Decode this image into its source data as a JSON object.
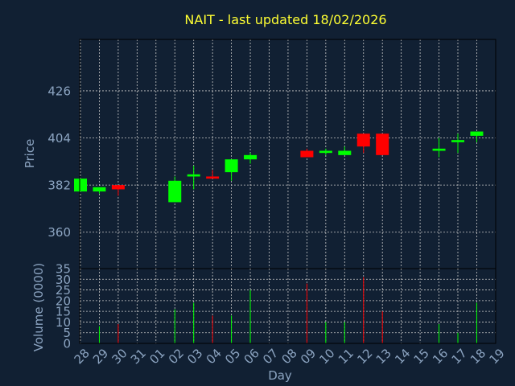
{
  "chart_data": [
    {
      "type": "candlestick",
      "title": "NAIT - last updated 18/02/2026",
      "ylabel": "Price",
      "ylim": [
        343,
        450
      ],
      "yticks": [
        360,
        382,
        404,
        426
      ],
      "grid": true,
      "up_color": "#00ff00",
      "down_color": "#ff0000",
      "candles": [
        {
          "day": "28",
          "open": 379,
          "high": 385,
          "low": 379,
          "close": 385
        },
        {
          "day": "29",
          "open": 379,
          "high": 381,
          "low": 378,
          "close": 381
        },
        {
          "day": "30",
          "open": 382,
          "high": 382,
          "low": 377,
          "close": 380
        },
        {
          "day": "02",
          "open": 374,
          "high": 386,
          "low": 374,
          "close": 384
        },
        {
          "day": "03",
          "open": 386,
          "high": 391,
          "low": 380,
          "close": 387
        },
        {
          "day": "04",
          "open": 386,
          "high": 389,
          "low": 385,
          "close": 385
        },
        {
          "day": "05",
          "open": 388,
          "high": 394,
          "low": 384,
          "close": 394
        },
        {
          "day": "06",
          "open": 394,
          "high": 397,
          "low": 392,
          "close": 396
        },
        {
          "day": "09",
          "open": 398,
          "high": 399,
          "low": 395,
          "close": 395
        },
        {
          "day": "10",
          "open": 397,
          "high": 399,
          "low": 396,
          "close": 398
        },
        {
          "day": "11",
          "open": 396,
          "high": 400,
          "low": 396,
          "close": 398
        },
        {
          "day": "12",
          "open": 406,
          "high": 406,
          "low": 397,
          "close": 400
        },
        {
          "day": "13",
          "open": 406,
          "high": 406,
          "low": 396,
          "close": 396
        },
        {
          "day": "16",
          "open": 398,
          "high": 404,
          "low": 395,
          "close": 399
        },
        {
          "day": "17",
          "open": 402,
          "high": 406,
          "low": 397,
          "close": 403
        },
        {
          "day": "18",
          "open": 405,
          "high": 407,
          "low": 402,
          "close": 407
        }
      ]
    },
    {
      "type": "bar",
      "ylabel": "Volume (0000)",
      "xlabel": "Day",
      "ylim": [
        0,
        35
      ],
      "yticks": [
        0,
        5,
        10,
        15,
        20,
        25,
        30,
        35
      ],
      "grid": true,
      "x_ticks": [
        "28",
        "29",
        "30",
        "31",
        "01",
        "02",
        "03",
        "04",
        "05",
        "06",
        "07",
        "08",
        "09",
        "10",
        "11",
        "12",
        "13",
        "14",
        "15",
        "16",
        "17",
        "18",
        "19"
      ],
      "bars": [
        {
          "day": "29",
          "value": 8,
          "color": "#00ff00"
        },
        {
          "day": "30",
          "value": 9,
          "color": "#ff0000"
        },
        {
          "day": "02",
          "value": 16,
          "color": "#00ff00"
        },
        {
          "day": "03",
          "value": 19,
          "color": "#00ff00"
        },
        {
          "day": "04",
          "value": 13,
          "color": "#ff0000"
        },
        {
          "day": "05",
          "value": 13,
          "color": "#00ff00"
        },
        {
          "day": "06",
          "value": 25,
          "color": "#00ff00"
        },
        {
          "day": "09",
          "value": 28,
          "color": "#ff0000"
        },
        {
          "day": "10",
          "value": 10,
          "color": "#00ff00"
        },
        {
          "day": "11",
          "value": 10,
          "color": "#00ff00"
        },
        {
          "day": "12",
          "value": 31,
          "color": "#ff0000"
        },
        {
          "day": "13",
          "value": 15,
          "color": "#ff0000"
        },
        {
          "day": "16",
          "value": 9,
          "color": "#00ff00"
        },
        {
          "day": "17",
          "value": 5,
          "color": "#00ff00"
        },
        {
          "day": "18",
          "value": 19,
          "color": "#00ff00"
        }
      ]
    }
  ]
}
